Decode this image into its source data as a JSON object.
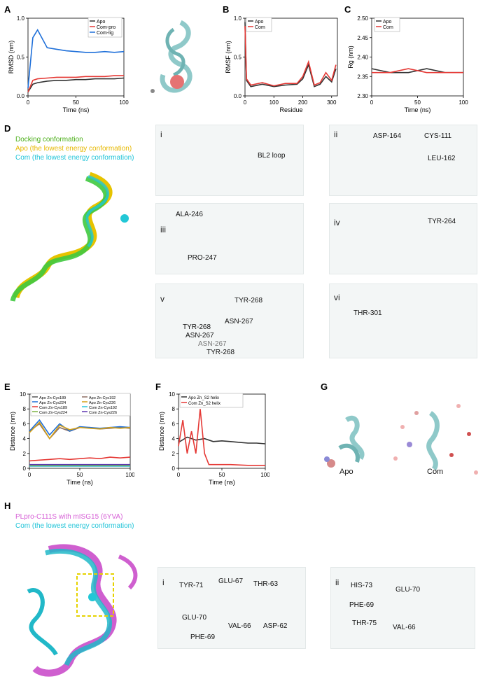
{
  "panels": {
    "A": "A",
    "B": "B",
    "C": "C",
    "D": "D",
    "E": "E",
    "F": "F",
    "G": "G",
    "H": "H"
  },
  "charts": {
    "A": {
      "xlabel": "Time (ns)",
      "ylabel": "RMSD (nm)",
      "xticks": [
        "0",
        "50",
        "100"
      ],
      "yticks": [
        "0.0",
        "0.5",
        "1.0"
      ],
      "legend": [
        "Apo",
        "Com-pro",
        "Com-lig"
      ]
    },
    "B": {
      "xlabel": "Residue",
      "ylabel": "RMSF (nm)",
      "xticks": [
        "0",
        "100",
        "200",
        "300"
      ],
      "yticks": [
        "0.0",
        "0.5",
        "1.0"
      ],
      "legend": [
        "Apo",
        "Com"
      ]
    },
    "C": {
      "xlabel": "Time (ns)",
      "ylabel": "Rg (nm)",
      "xticks": [
        "0",
        "50",
        "100"
      ],
      "yticks": [
        "2.30",
        "2.35",
        "2.40",
        "2.45",
        "2.50"
      ],
      "legend": [
        "Apo",
        "Com"
      ]
    },
    "E": {
      "xlabel": "Time (ns)",
      "ylabel": "Distance (nm)",
      "xticks": [
        "0",
        "50",
        "100"
      ],
      "yticks": [
        "0",
        "2",
        "4",
        "6",
        "8",
        "10"
      ],
      "legend": [
        "Apo Zn-Cys189",
        "Apo Zn-Cys192",
        "Apo Zn-Cys224",
        "Apo Zn-Cys226",
        "Com Zn-Cys189",
        "Com Zn-Cys192",
        "Com Zn-Cys224",
        "Com Zn-Cys226"
      ]
    },
    "F": {
      "xlabel": "Time (ns)",
      "ylabel": "Distance (nm)",
      "xticks": [
        "0",
        "50",
        "100"
      ],
      "yticks": [
        "0",
        "2",
        "4",
        "6",
        "8",
        "10"
      ],
      "legend": [
        "Apo Zn_S2 helix",
        "Com Zn_S2 helix"
      ]
    }
  },
  "chart_data": [
    {
      "panel": "A",
      "type": "line",
      "xlim": [
        0,
        100
      ],
      "ylim": [
        0.0,
        1.0
      ],
      "series": [
        {
          "name": "Apo",
          "color": "#333333",
          "x": [
            0,
            5,
            10,
            20,
            30,
            40,
            50,
            60,
            70,
            80,
            90,
            100
          ],
          "values": [
            0.05,
            0.15,
            0.17,
            0.19,
            0.2,
            0.2,
            0.21,
            0.21,
            0.22,
            0.22,
            0.22,
            0.23
          ]
        },
        {
          "name": "Com-pro",
          "color": "#e53935",
          "x": [
            0,
            5,
            10,
            20,
            30,
            40,
            50,
            60,
            70,
            80,
            90,
            100
          ],
          "values": [
            0.05,
            0.2,
            0.22,
            0.23,
            0.24,
            0.24,
            0.24,
            0.25,
            0.25,
            0.25,
            0.26,
            0.26
          ]
        },
        {
          "name": "Com-lig",
          "color": "#1e6fd9",
          "x": [
            0,
            5,
            10,
            20,
            30,
            40,
            50,
            60,
            70,
            80,
            90,
            100
          ],
          "values": [
            0.1,
            0.75,
            0.85,
            0.62,
            0.6,
            0.58,
            0.57,
            0.56,
            0.56,
            0.57,
            0.56,
            0.57
          ]
        }
      ]
    },
    {
      "panel": "B",
      "type": "line",
      "xlim": [
        0,
        320
      ],
      "ylim": [
        0.0,
        1.0
      ],
      "series": [
        {
          "name": "Apo",
          "color": "#333333",
          "x": [
            0,
            5,
            20,
            60,
            100,
            140,
            180,
            200,
            220,
            240,
            260,
            280,
            300,
            315
          ],
          "values": [
            0.95,
            0.2,
            0.12,
            0.15,
            0.12,
            0.14,
            0.15,
            0.22,
            0.4,
            0.12,
            0.15,
            0.25,
            0.18,
            0.35
          ]
        },
        {
          "name": "Com",
          "color": "#e53935",
          "x": [
            0,
            5,
            20,
            60,
            100,
            140,
            180,
            200,
            220,
            240,
            260,
            280,
            300,
            315
          ],
          "values": [
            0.9,
            0.22,
            0.14,
            0.17,
            0.13,
            0.16,
            0.16,
            0.25,
            0.44,
            0.14,
            0.17,
            0.3,
            0.2,
            0.4
          ]
        }
      ]
    },
    {
      "panel": "C",
      "type": "line",
      "xlim": [
        0,
        100
      ],
      "ylim": [
        2.3,
        2.5
      ],
      "series": [
        {
          "name": "Apo",
          "color": "#333333",
          "x": [
            0,
            20,
            40,
            60,
            80,
            100
          ],
          "values": [
            2.37,
            2.36,
            2.36,
            2.37,
            2.36,
            2.36
          ]
        },
        {
          "name": "Com",
          "color": "#e53935",
          "x": [
            0,
            20,
            40,
            60,
            80,
            100
          ],
          "values": [
            2.36,
            2.36,
            2.37,
            2.36,
            2.36,
            2.36
          ]
        }
      ]
    },
    {
      "panel": "E",
      "type": "line",
      "xlim": [
        0,
        100
      ],
      "ylim": [
        0,
        10
      ],
      "series": [
        {
          "name": "Apo Zn-Cys189",
          "color": "#555555",
          "x": [
            0,
            10,
            20,
            30,
            40,
            50,
            60,
            70,
            80,
            90,
            100
          ],
          "values": [
            0.3,
            0.3,
            0.3,
            0.3,
            0.3,
            0.3,
            0.3,
            0.3,
            0.3,
            0.3,
            0.3
          ]
        },
        {
          "name": "Apo Zn-Cys192",
          "color": "#8d6e63",
          "x": [
            0,
            10,
            20,
            30,
            40,
            50,
            60,
            70,
            80,
            90,
            100
          ],
          "values": [
            5,
            6,
            4,
            5.5,
            5,
            5.5,
            5.5,
            5.3,
            5.4,
            5.5,
            5.4
          ]
        },
        {
          "name": "Apo Zn-Cys224",
          "color": "#1e6fd9",
          "x": [
            0,
            10,
            20,
            30,
            40,
            50,
            60,
            70,
            80,
            90,
            100
          ],
          "values": [
            5,
            6.5,
            4.5,
            6,
            5,
            5.6,
            5.5,
            5.4,
            5.5,
            5.6,
            5.5
          ]
        },
        {
          "name": "Apo Zn-Cys226",
          "color": "#d4a017",
          "x": [
            0,
            10,
            20,
            30,
            40,
            50,
            60,
            70,
            80,
            90,
            100
          ],
          "values": [
            4.8,
            6.2,
            4,
            5.8,
            5.2,
            5.5,
            5.4,
            5.3,
            5.5,
            5.4,
            5.5
          ]
        },
        {
          "name": "Com Zn-Cys189",
          "color": "#e53935",
          "x": [
            0,
            10,
            20,
            30,
            40,
            50,
            60,
            70,
            80,
            90,
            100
          ],
          "values": [
            1.0,
            1.1,
            1.2,
            1.3,
            1.2,
            1.3,
            1.4,
            1.3,
            1.5,
            1.4,
            1.5
          ]
        },
        {
          "name": "Com Zn-Cys192",
          "color": "#26c6da",
          "x": [
            0,
            10,
            20,
            30,
            40,
            50,
            60,
            70,
            80,
            90,
            100
          ],
          "values": [
            0.3,
            0.3,
            0.3,
            0.3,
            0.3,
            0.3,
            0.3,
            0.3,
            0.3,
            0.3,
            0.3
          ]
        },
        {
          "name": "Com Zn-Cys224",
          "color": "#7cb342",
          "x": [
            0,
            10,
            20,
            30,
            40,
            50,
            60,
            70,
            80,
            90,
            100
          ],
          "values": [
            0.4,
            0.4,
            0.4,
            0.4,
            0.4,
            0.4,
            0.4,
            0.4,
            0.4,
            0.4,
            0.4
          ]
        },
        {
          "name": "Com Zn-Cys226",
          "color": "#5e35b1",
          "x": [
            0,
            10,
            20,
            30,
            40,
            50,
            60,
            70,
            80,
            90,
            100
          ],
          "values": [
            0.5,
            0.5,
            0.5,
            0.5,
            0.5,
            0.5,
            0.5,
            0.5,
            0.5,
            0.5,
            0.5
          ]
        }
      ]
    },
    {
      "panel": "F",
      "type": "line",
      "xlim": [
        0,
        100
      ],
      "ylim": [
        0,
        10
      ],
      "series": [
        {
          "name": "Apo Zn_S2 helix",
          "color": "#333333",
          "x": [
            0,
            10,
            20,
            30,
            40,
            50,
            60,
            70,
            80,
            90,
            100
          ],
          "values": [
            3.5,
            4.2,
            3.8,
            4.0,
            3.6,
            3.7,
            3.6,
            3.5,
            3.4,
            3.4,
            3.3
          ]
        },
        {
          "name": "Com Zn_S2 helix",
          "color": "#e53935",
          "x": [
            0,
            5,
            10,
            15,
            20,
            25,
            30,
            35,
            40,
            50,
            60,
            80,
            100
          ],
          "values": [
            3,
            6.5,
            2,
            5,
            2,
            8,
            2,
            0.5,
            0.5,
            0.5,
            0.5,
            0.4,
            0.4
          ]
        }
      ]
    }
  ],
  "D": {
    "legend": [
      {
        "text": "Docking conformation",
        "color": "#4caf1a"
      },
      {
        "text": "Apo (the lowest energy conformation)",
        "color": "#e6b800"
      },
      {
        "text": "Com (the lowest energy conformation)",
        "color": "#20c4d8"
      }
    ],
    "subpanels": {
      "i": {
        "label": "i",
        "texts": [
          "BL2 loop"
        ]
      },
      "ii": {
        "label": "ii",
        "texts": [
          "ASP-164",
          "CYS-111",
          "LEU-162"
        ]
      },
      "iii": {
        "label": "iii",
        "texts": [
          "ALA-246",
          "PRO-247"
        ]
      },
      "iv": {
        "label": "iv",
        "texts": [
          "TYR-264"
        ]
      },
      "v": {
        "label": "v",
        "texts": [
          "TYR-268",
          "TYR-268",
          "ASN-267",
          "ASN-267",
          "ASN-267",
          "TYR-268"
        ]
      },
      "vi": {
        "label": "vi",
        "texts": [
          "THR-301"
        ]
      }
    }
  },
  "G": {
    "apo": "Apo",
    "com": "Com"
  },
  "H": {
    "legend": [
      {
        "text": "PLpro-C111S with mISG15 (6YVA)",
        "color": "#d65fd6"
      },
      {
        "text": "Com (the lowest energy conformation)",
        "color": "#20c4d8"
      }
    ],
    "subpanels": {
      "i": {
        "label": "i",
        "texts": [
          "TYR-71",
          "GLU-67",
          "THR-63",
          "GLU-70",
          "VAL-66",
          "ASP-62",
          "PHE-69"
        ]
      },
      "ii": {
        "label": "ii",
        "texts": [
          "HIS-73",
          "GLU-70",
          "PHE-69",
          "THR-75",
          "VAL-66"
        ]
      }
    }
  }
}
